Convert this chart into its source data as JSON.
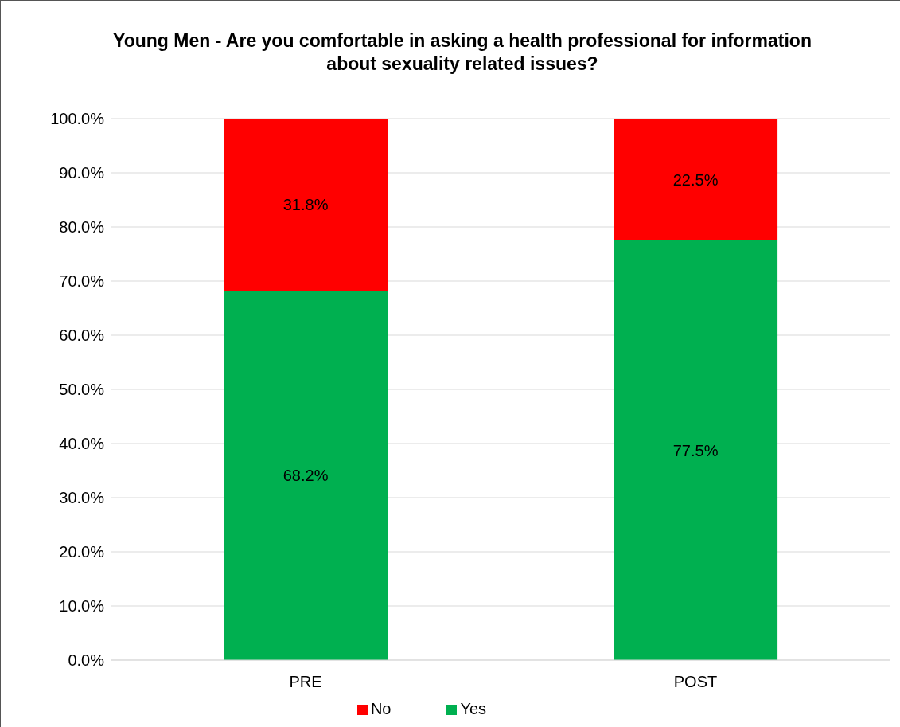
{
  "chart_data": {
    "type": "bar",
    "title": "Young Men - Are you comfortable in asking a health professional for information about sexuality related issues?",
    "categories": [
      "PRE",
      "POST"
    ],
    "stacked": true,
    "series": [
      {
        "name": "Yes",
        "color": "#00b050",
        "values": [
          68.2,
          77.5
        ],
        "value_labels": [
          "68.2%",
          "77.5%"
        ]
      },
      {
        "name": "No",
        "color": "#ff0000",
        "values": [
          31.8,
          22.5
        ],
        "value_labels": [
          "31.8%",
          "22.5%"
        ]
      }
    ],
    "ylim": [
      0,
      100
    ],
    "yticks": [
      {
        "value": 0,
        "label": "0.0%"
      },
      {
        "value": 10,
        "label": "10.0%"
      },
      {
        "value": 20,
        "label": "20.0%"
      },
      {
        "value": 30,
        "label": "30.0%"
      },
      {
        "value": 40,
        "label": "40.0%"
      },
      {
        "value": 50,
        "label": "50.0%"
      },
      {
        "value": 60,
        "label": "60.0%"
      },
      {
        "value": 70,
        "label": "70.0%"
      },
      {
        "value": 80,
        "label": "80.0%"
      },
      {
        "value": 90,
        "label": "90.0%"
      },
      {
        "value": 100,
        "label": "100.0%"
      }
    ],
    "grid": "y",
    "legend": "bottom"
  }
}
